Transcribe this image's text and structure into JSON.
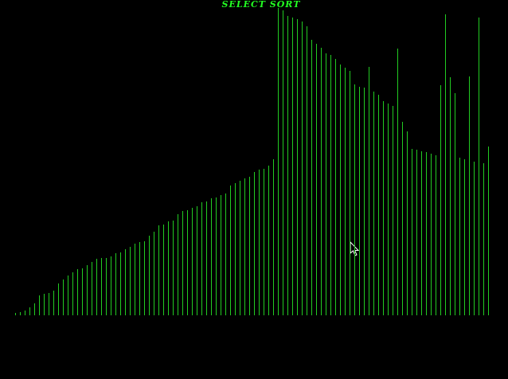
{
  "chart_data": {
    "type": "bar",
    "title": "SELECT SORT",
    "color": "#22cc22",
    "values": [
      3,
      4,
      6,
      10,
      15,
      25,
      27,
      28,
      31,
      40,
      45,
      50,
      54,
      58,
      59,
      63,
      67,
      71,
      72,
      72,
      74,
      78,
      79,
      83,
      86,
      90,
      92,
      93,
      100,
      105,
      113,
      114,
      118,
      119,
      127,
      131,
      132,
      135,
      137,
      142,
      143,
      147,
      148,
      151,
      153,
      163,
      166,
      169,
      172,
      174,
      180,
      183,
      184,
      188,
      196,
      386,
      383,
      376,
      374,
      372,
      369,
      363,
      346,
      341,
      336,
      329,
      327,
      322,
      315,
      311,
      307,
      290,
      287,
      286,
      312,
      281,
      277,
      269,
      266,
      263,
      335,
      243,
      231,
      209,
      208,
      206,
      205,
      203,
      201,
      289,
      378,
      299,
      279,
      198,
      196,
      300,
      193,
      374,
      191,
      212
    ],
    "ylim": [
      0,
      396
    ]
  }
}
